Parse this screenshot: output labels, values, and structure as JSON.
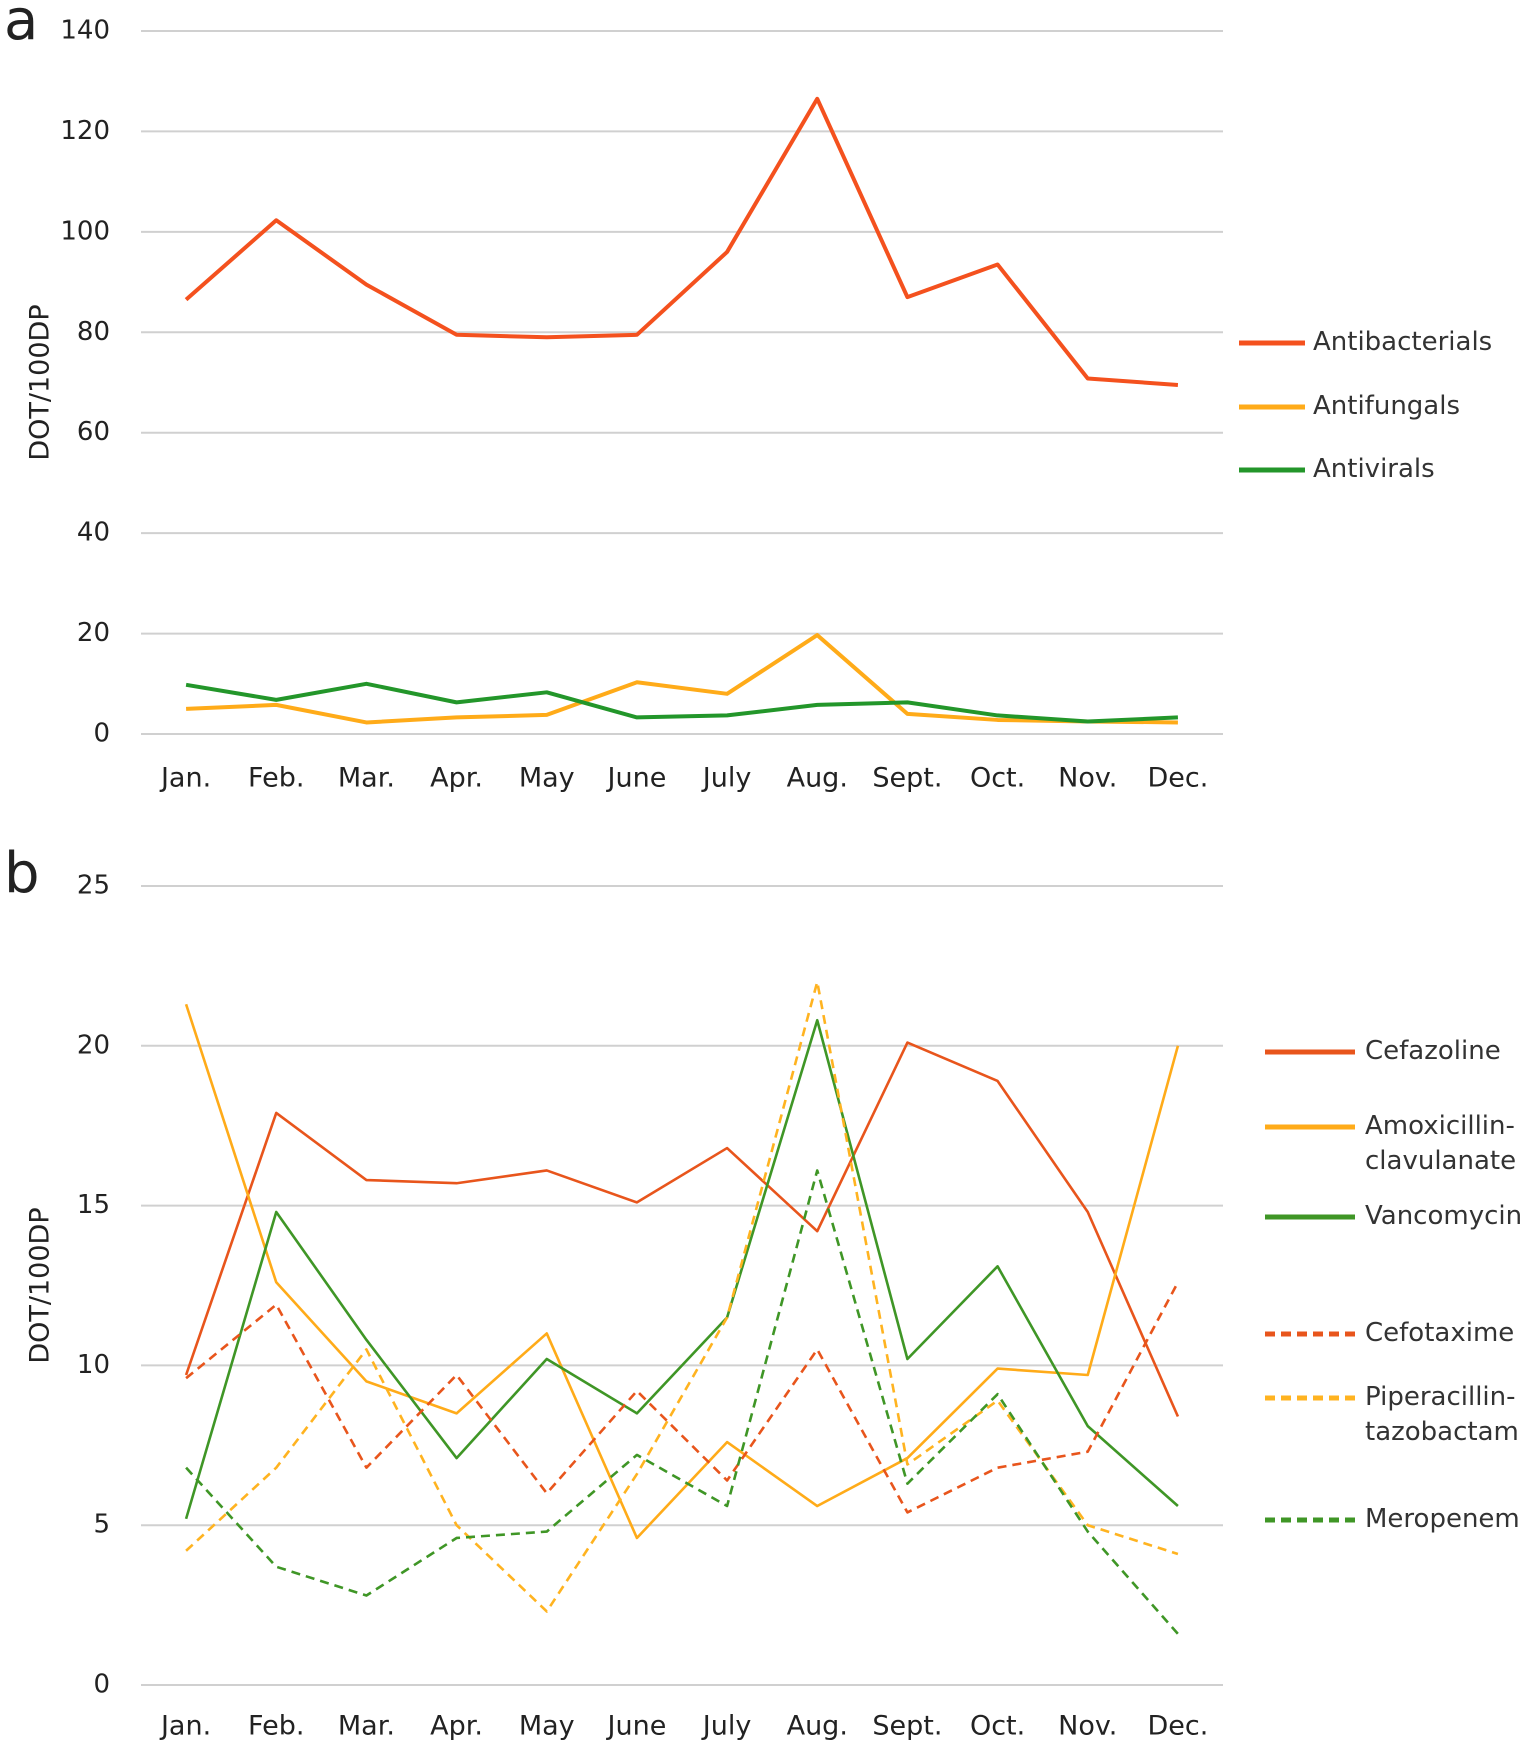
{
  "chart_data": [
    {
      "type": "line",
      "label": "a",
      "y_label": "DOT/100DP",
      "categories": [
        "Jan.",
        "Feb.",
        "Mar.",
        "Apr.",
        "May",
        "June",
        "July",
        "Aug.",
        "Sept.",
        "Oct.",
        "Nov.",
        "Dec."
      ],
      "ylim": [
        0,
        140
      ],
      "yticks": [
        0,
        20,
        40,
        60,
        80,
        100,
        120,
        140
      ],
      "grid": true,
      "series": [
        {
          "name": "Antibacterials",
          "color": "#f4511e",
          "dash": false,
          "values": [
            86.5,
            102.3,
            89.5,
            79.5,
            79,
            79.5,
            96,
            126.5,
            87,
            93.5,
            70.8,
            69.5
          ]
        },
        {
          "name": "Antifungals",
          "color": "#ffab19",
          "dash": false,
          "values": [
            5,
            5.8,
            2.3,
            3.3,
            3.8,
            10.3,
            8,
            19.7,
            4,
            2.8,
            2.5,
            2.3
          ]
        },
        {
          "name": "Antivirals",
          "color": "#23962a",
          "dash": false,
          "values": [
            9.8,
            6.8,
            10,
            6.3,
            8.3,
            3.3,
            3.7,
            5.8,
            6.3,
            3.7,
            2.5,
            3.3
          ]
        }
      ]
    },
    {
      "type": "line",
      "label": "b",
      "y_label": "DOT/100DP",
      "categories": [
        "Jan.",
        "Feb.",
        "Mar.",
        "Apr.",
        "May",
        "June",
        "July",
        "Aug.",
        "Sept.",
        "Oct.",
        "Nov.",
        "Dec."
      ],
      "ylim": [
        0,
        25
      ],
      "yticks": [
        0,
        5,
        10,
        15,
        20,
        25
      ],
      "grid": true,
      "series": [
        {
          "name": "Cefazoline",
          "color": "#e8551c",
          "dash": false,
          "values": [
            9.7,
            17.9,
            15.8,
            15.7,
            16.1,
            15.1,
            16.8,
            14.2,
            20.1,
            18.9,
            14.8,
            8.4
          ]
        },
        {
          "name": "Amoxicillin-clavulanate",
          "color": "#ffab19",
          "dash": false,
          "values": [
            21.3,
            12.6,
            9.5,
            8.5,
            11,
            4.6,
            7.6,
            5.6,
            7.1,
            9.9,
            9.7,
            20
          ]
        },
        {
          "name": "Vancomycin",
          "color": "#3f9626",
          "dash": false,
          "values": [
            5.2,
            14.8,
            10.8,
            7.1,
            10.2,
            8.5,
            11.5,
            20.8,
            10.2,
            13.1,
            8.1,
            5.6
          ]
        },
        {
          "name": "Cefotaxime",
          "color": "#e8551c",
          "dash": true,
          "values": [
            9.6,
            11.9,
            6.8,
            9.7,
            6,
            9.2,
            6.4,
            10.5,
            5.4,
            6.8,
            7.3,
            12.6
          ]
        },
        {
          "name": "Piperacillin-tazobactam",
          "color": "#ffb320",
          "dash": true,
          "values": [
            4.2,
            6.8,
            10.5,
            5,
            2.3,
            6.6,
            11.5,
            22,
            6.9,
            8.9,
            5,
            4.1
          ]
        },
        {
          "name": "Meropenem",
          "color": "#3f9626",
          "dash": true,
          "values": [
            6.8,
            3.7,
            2.8,
            4.6,
            4.8,
            7.2,
            5.6,
            16.1,
            6.3,
            9.1,
            4.8,
            1.6
          ]
        }
      ]
    }
  ]
}
